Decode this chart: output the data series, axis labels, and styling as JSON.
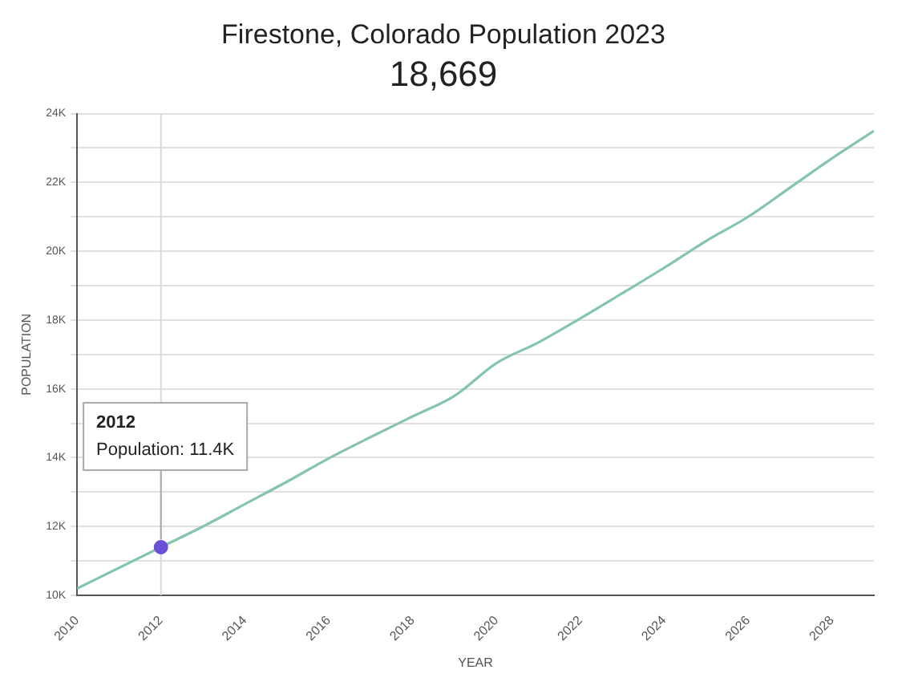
{
  "chart_data": {
    "type": "line",
    "title": "Firestone, Colorado Population 2023",
    "subtitle": "18,669",
    "xlabel": "YEAR",
    "ylabel": "POPULATION",
    "x": [
      2010,
      2011,
      2012,
      2013,
      2014,
      2015,
      2016,
      2017,
      2018,
      2019,
      2020,
      2021,
      2022,
      2023,
      2024,
      2025,
      2026,
      2027,
      2028,
      2029
    ],
    "series": [
      {
        "type": "line",
        "color": "#86c5ad",
        "marker": "none",
        "values": [
          10200,
          10800,
          11400,
          12000,
          12650,
          13300,
          13980,
          14600,
          15200,
          15800,
          16750,
          17350,
          18050,
          18780,
          19520,
          20300,
          21000,
          21850,
          22700,
          23500
        ]
      },
      {
        "type": "scatter",
        "color": "#6a4fd8",
        "marker": "circle",
        "x": [
          2012
        ],
        "values": [
          11400
        ]
      }
    ],
    "xlim": [
      2010,
      2029
    ],
    "xticks": [
      2010,
      2012,
      2014,
      2016,
      2018,
      2020,
      2022,
      2024,
      2026,
      2028
    ],
    "ylim": [
      10000,
      24000
    ],
    "yticks": [
      {
        "value": 10000,
        "label": "10K"
      },
      {
        "value": 11000,
        "label": null
      },
      {
        "value": 12000,
        "label": "12K"
      },
      {
        "value": 13000,
        "label": null
      },
      {
        "value": 14000,
        "label": "14K"
      },
      {
        "value": 15000,
        "label": null
      },
      {
        "value": 16000,
        "label": "16K"
      },
      {
        "value": 17000,
        "label": null
      },
      {
        "value": 18000,
        "label": "18K"
      },
      {
        "value": 19000,
        "label": null
      },
      {
        "value": 20000,
        "label": "20K"
      },
      {
        "value": 21000,
        "label": null
      },
      {
        "value": 22000,
        "label": "22K"
      },
      {
        "value": 23000,
        "label": null
      },
      {
        "value": 24000,
        "label": "24K"
      }
    ],
    "grid": "y",
    "legend": false,
    "line_style": "solid",
    "ref_lines": [
      {
        "axis": "x",
        "value": 2012,
        "color": "#d8d8d8"
      }
    ],
    "annotations": [
      {
        "text": "2012\nPopulation: 11.4K",
        "x": 2012,
        "y": 11400
      }
    ]
  }
}
